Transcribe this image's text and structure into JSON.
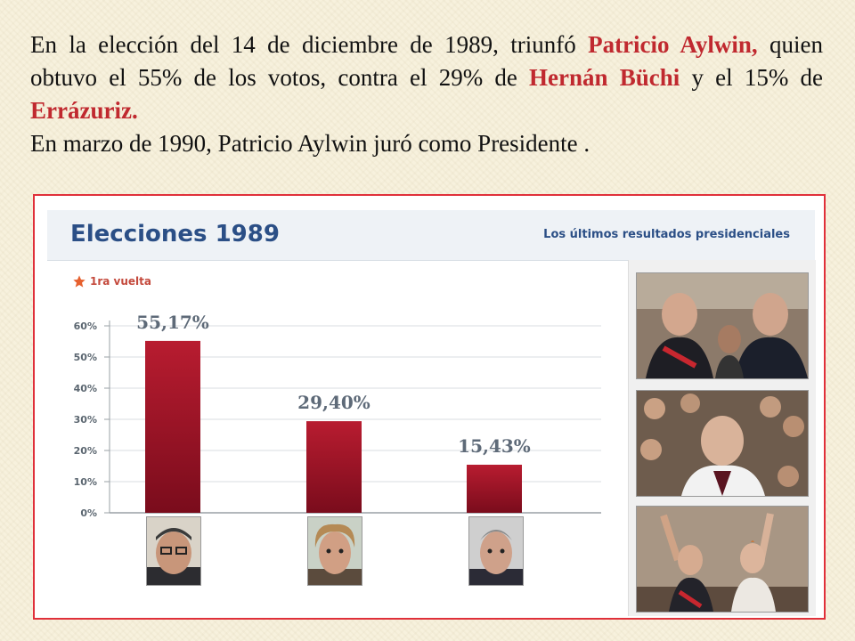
{
  "text": {
    "p1_a": "En la elección del 14 de diciembre de 1989, triunfó",
    "p1_b": "Patricio Aylwin,",
    "p1_c": " quien obtuvo el 55% de los votos, contra el 29% de ",
    "p1_d": "Hernán Büchi",
    "p1_e": " y el 15% de ",
    "p1_f": "Errázuriz.",
    "p2": "En marzo de 1990, Patricio Aylwin juró como Presidente ."
  },
  "panel": {
    "title": "Elecciones 1989",
    "subtitle": "Los últimos resultados presidenciales",
    "round_label": "1ra vuelta"
  },
  "chart_data": {
    "type": "bar",
    "title": "Elecciones 1989",
    "categories": [
      "",
      "",
      ""
    ],
    "values": [
      55.17,
      29.4,
      15.43
    ],
    "value_labels": [
      "55,17%",
      "29,40%",
      "15,43%"
    ],
    "y_ticks": [
      "0%",
      "10%",
      "20%",
      "30%",
      "40%",
      "50%",
      "60%"
    ],
    "ylim": [
      0,
      60
    ],
    "xlabel": "",
    "ylabel": "",
    "grid": true,
    "bar_color": "#a3152a"
  },
  "colors": {
    "accent_red": "#c0292f",
    "header_blue": "#2b4f86",
    "border_red": "#e0303a"
  }
}
